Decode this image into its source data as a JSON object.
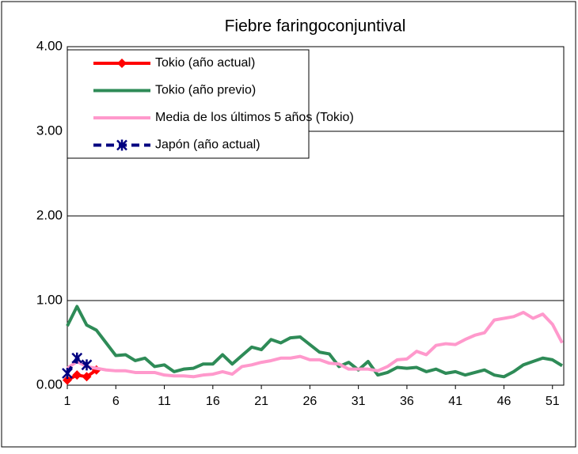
{
  "chart_data": {
    "type": "line",
    "title": "Fiebre faringoconjuntival",
    "x": [
      1,
      2,
      3,
      4,
      5,
      6,
      7,
      8,
      9,
      10,
      11,
      12,
      13,
      14,
      15,
      16,
      17,
      18,
      19,
      20,
      21,
      22,
      23,
      24,
      25,
      26,
      27,
      28,
      29,
      30,
      31,
      32,
      33,
      34,
      35,
      36,
      37,
      38,
      39,
      40,
      41,
      42,
      43,
      44,
      45,
      46,
      47,
      48,
      49,
      50,
      51,
      52
    ],
    "xlim": [
      1,
      52
    ],
    "xticks": [
      1,
      6,
      11,
      16,
      21,
      26,
      31,
      36,
      41,
      46,
      51
    ],
    "ylim": [
      0,
      4
    ],
    "yticks": [
      {
        "value": 0,
        "label": "0.00"
      },
      {
        "value": 1,
        "label": "1.00"
      },
      {
        "value": 2,
        "label": "2.00"
      },
      {
        "value": 3,
        "label": "3.00"
      },
      {
        "value": 4,
        "label": "4.00"
      }
    ],
    "grid": true,
    "legend": "upper left",
    "series": [
      {
        "name": "Tokio (año actual)",
        "color": "#ff0000",
        "marker": "diamond",
        "dash": false,
        "values": [
          0.06,
          0.12,
          0.1,
          0.18,
          null,
          null,
          null,
          null,
          null,
          null,
          null,
          null,
          null,
          null,
          null,
          null,
          null,
          null,
          null,
          null,
          null,
          null,
          null,
          null,
          null,
          null,
          null,
          null,
          null,
          null,
          null,
          null,
          null,
          null,
          null,
          null,
          null,
          null,
          null,
          null,
          null,
          null,
          null,
          null,
          null,
          null,
          null,
          null,
          null,
          null,
          null,
          null
        ]
      },
      {
        "name": "Tokio (año previo)",
        "color": "#2e8b57",
        "marker": null,
        "dash": false,
        "values": [
          0.7,
          0.93,
          0.71,
          0.65,
          0.5,
          0.35,
          0.36,
          0.29,
          0.32,
          0.22,
          0.24,
          0.16,
          0.19,
          0.2,
          0.25,
          0.25,
          0.36,
          0.25,
          0.35,
          0.45,
          0.42,
          0.54,
          0.5,
          0.56,
          0.57,
          0.48,
          0.39,
          0.37,
          0.22,
          0.27,
          0.18,
          0.28,
          0.12,
          0.15,
          0.21,
          0.2,
          0.21,
          0.16,
          0.19,
          0.14,
          0.16,
          0.12,
          0.15,
          0.18,
          0.12,
          0.1,
          0.16,
          0.24,
          0.28,
          0.32,
          0.3,
          0.23
        ]
      },
      {
        "name": "Media de los últimos 5 años (Tokio)",
        "color": "#ff99cc",
        "marker": null,
        "dash": false,
        "values": [
          0.2,
          0.28,
          0.22,
          0.2,
          0.18,
          0.17,
          0.17,
          0.15,
          0.15,
          0.15,
          0.12,
          0.11,
          0.11,
          0.1,
          0.12,
          0.13,
          0.16,
          0.13,
          0.22,
          0.24,
          0.27,
          0.29,
          0.32,
          0.32,
          0.34,
          0.3,
          0.3,
          0.26,
          0.25,
          0.19,
          0.19,
          0.19,
          0.17,
          0.22,
          0.3,
          0.31,
          0.4,
          0.36,
          0.47,
          0.49,
          0.48,
          0.54,
          0.59,
          0.62,
          0.77,
          0.79,
          0.81,
          0.86,
          0.79,
          0.84,
          0.72,
          0.5
        ]
      },
      {
        "name": "Japón (año actual)",
        "color": "#000080",
        "marker": "star",
        "dash": true,
        "values": [
          0.14,
          0.32,
          0.24,
          null,
          null,
          null,
          null,
          null,
          null,
          null,
          null,
          null,
          null,
          null,
          null,
          null,
          null,
          null,
          null,
          null,
          null,
          null,
          null,
          null,
          null,
          null,
          null,
          null,
          null,
          null,
          null,
          null,
          null,
          null,
          null,
          null,
          null,
          null,
          null,
          null,
          null,
          null,
          null,
          null,
          null,
          null,
          null,
          null,
          null,
          null,
          null,
          null
        ]
      }
    ]
  }
}
